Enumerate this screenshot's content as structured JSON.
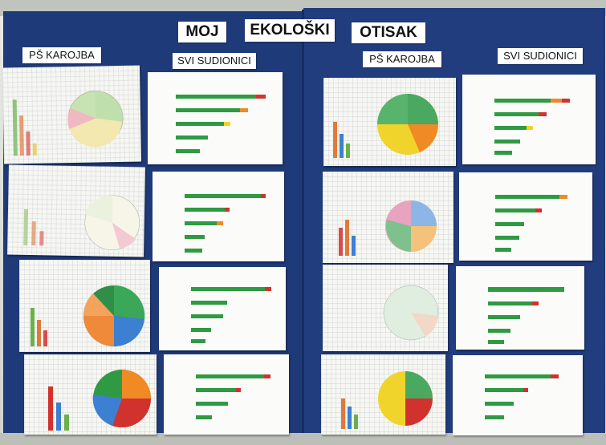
{
  "poster": {
    "title_words": [
      "MOJ",
      "EKOLOŠKI",
      "OTISAK"
    ],
    "labels": {
      "left_school": "PŠ KAROJBA",
      "left_all": "SVI SUDIONICI",
      "right_school": "PŠ KAROJBA",
      "right_all": "SVI SUDIONICI"
    }
  },
  "colors": {
    "board": "#1f3a78",
    "green": "#2f9a43",
    "red": "#d2322d",
    "orange": "#f08a24",
    "yellow": "#f1d42b",
    "blue": "#3d7fd0",
    "pink": "#e77aa0"
  }
}
